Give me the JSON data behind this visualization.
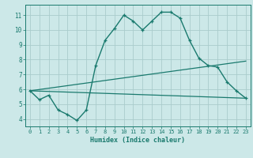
{
  "xlabel": "Humidex (Indice chaleur)",
  "xlim": [
    -0.5,
    23.5
  ],
  "ylim": [
    3.5,
    11.7
  ],
  "xticks": [
    0,
    1,
    2,
    3,
    4,
    5,
    6,
    7,
    8,
    9,
    10,
    11,
    12,
    13,
    14,
    15,
    16,
    17,
    18,
    19,
    20,
    21,
    22,
    23
  ],
  "yticks": [
    4,
    5,
    6,
    7,
    8,
    9,
    10,
    11
  ],
  "background_color": "#cce8e8",
  "grid_color": "#aacccc",
  "line_color": "#1a7a6e",
  "line1_x": [
    0,
    1,
    2,
    3,
    4,
    5,
    6,
    7,
    8,
    9,
    10,
    11,
    12,
    13,
    14,
    15,
    16,
    17,
    18,
    19,
    20,
    21,
    22,
    23
  ],
  "line1_y": [
    5.9,
    5.3,
    5.6,
    4.6,
    4.3,
    3.9,
    4.6,
    7.6,
    9.3,
    10.1,
    11.0,
    10.6,
    10.0,
    10.6,
    11.2,
    11.2,
    10.8,
    9.3,
    8.1,
    7.6,
    7.5,
    6.5,
    5.9,
    5.4
  ],
  "line2_x": [
    0,
    23
  ],
  "line2_y": [
    5.9,
    7.9
  ],
  "line3_x": [
    0,
    23
  ],
  "line3_y": [
    5.9,
    5.4
  ]
}
